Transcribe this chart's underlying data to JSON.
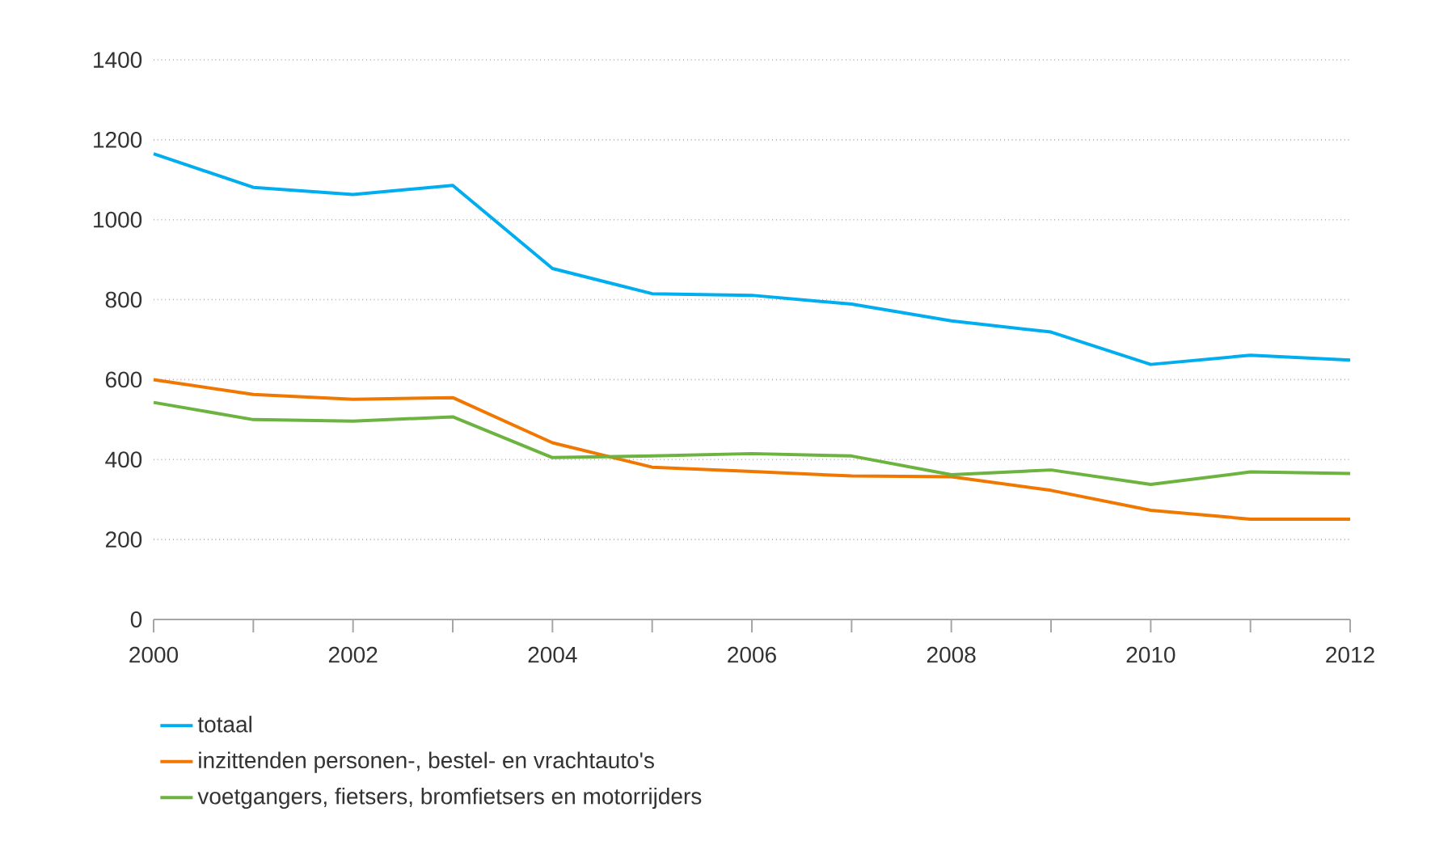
{
  "chart_data": {
    "type": "line",
    "x": [
      2000,
      2001,
      2002,
      2003,
      2004,
      2005,
      2006,
      2007,
      2008,
      2009,
      2010,
      2011,
      2012
    ],
    "series": [
      {
        "name": "totaal",
        "color": "#00aeef",
        "values": [
          1165,
          1081,
          1063,
          1086,
          878,
          815,
          811,
          789,
          747,
          719,
          638,
          661,
          649
        ]
      },
      {
        "name": "inzittenden personen-, bestel- en vrachtauto's",
        "color": "#f07800",
        "values": [
          600,
          563,
          551,
          555,
          442,
          381,
          370,
          359,
          357,
          323,
          273,
          251,
          251
        ]
      },
      {
        "name": "voetgangers, fietsers, bromfietsers en motorrijders",
        "color": "#6cb33f",
        "values": [
          543,
          500,
          496,
          507,
          405,
          409,
          415,
          409,
          362,
          374,
          338,
          369,
          365
        ]
      }
    ],
    "xlim": [
      2000,
      2012
    ],
    "xticks": [
      2000,
      {
        "value": 2001,
        "label": null
      },
      2002,
      {
        "value": 2003,
        "label": null
      },
      2004,
      {
        "value": 2005,
        "label": null
      },
      2006,
      {
        "value": 2007,
        "label": null
      },
      2008,
      {
        "value": 2009,
        "label": null
      },
      2010,
      {
        "value": 2011,
        "label": null
      },
      2012
    ],
    "ylim": [
      0,
      1400
    ],
    "yticks": [
      0,
      200,
      400,
      600,
      800,
      1000,
      1200,
      1400
    ],
    "grid": "y",
    "legend": "bottom",
    "marker": "none",
    "line_style": "solid"
  }
}
